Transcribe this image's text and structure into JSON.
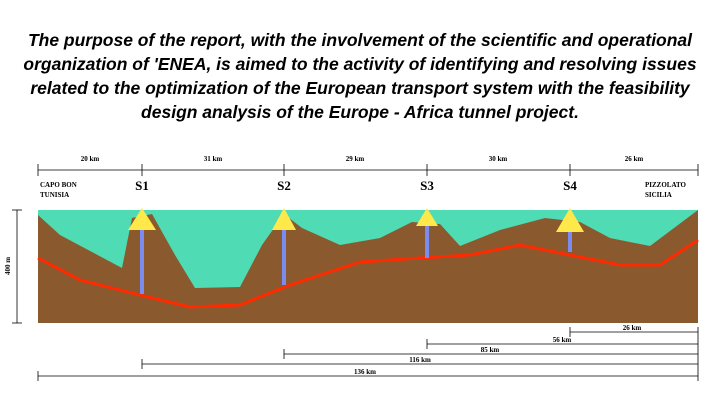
{
  "header": {
    "title_lines": [
      "The purpose of the report, with the involvement of the scientific and operational",
      "organization of 'ENEA, is aimed to the activity of identifying and resolving issues",
      "related to the optimization of the European transport system with the feasibility",
      "design analysis of the Europe - Africa tunnel project."
    ]
  },
  "diagram": {
    "segments": [
      "20 km",
      "31 km",
      "29 km",
      "30 km",
      "26 km"
    ],
    "stations": [
      "S1",
      "S2",
      "S3",
      "S4"
    ],
    "left_end": [
      "CAPO BON",
      "TUNISIA"
    ],
    "right_end": [
      "PIZZOLATO",
      "SICILIA"
    ],
    "depth_label": "400 m",
    "cumulative": [
      "26 km",
      "56 km",
      "85 km",
      "116 km",
      "136 km"
    ]
  }
}
